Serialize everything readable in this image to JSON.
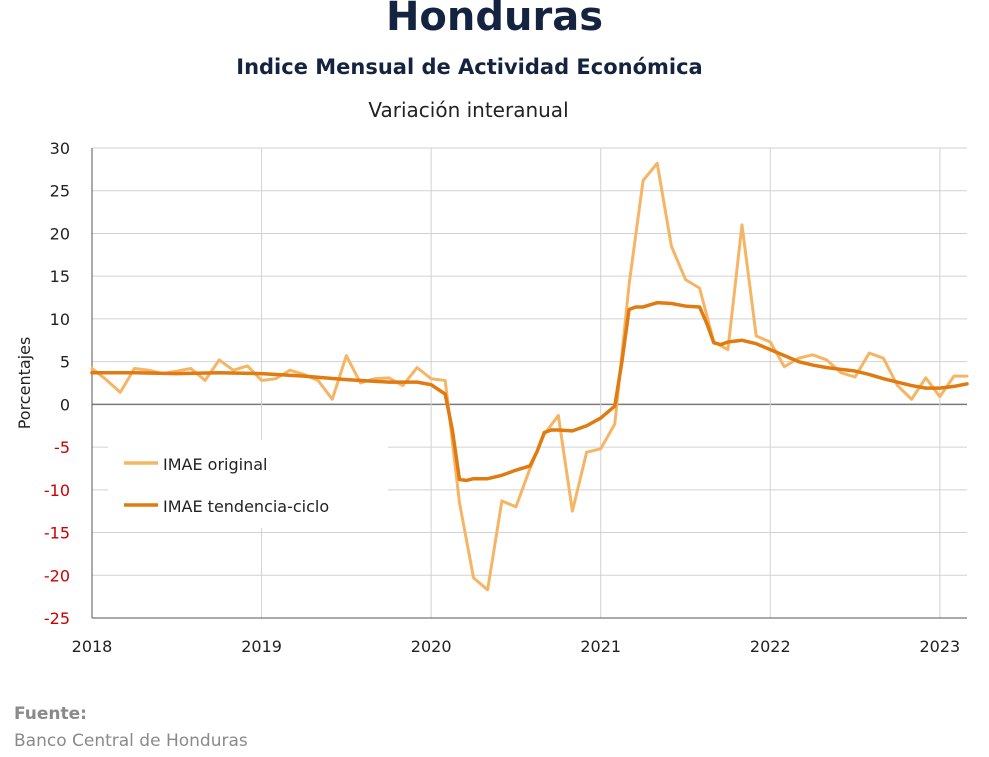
{
  "page": {
    "title": "Honduras",
    "subtitle": "Indice Mensual de  Actividad Económica",
    "source_label": "Fuente:",
    "source_text": "Banco Central de Honduras"
  },
  "colors": {
    "original": "#f6b565",
    "trend": "#e07b12",
    "negative_tick": "#cc0000",
    "axis": "#222222",
    "grid": "#d2d2d2",
    "zero_line": "#7a7a7a"
  },
  "chart_data": {
    "type": "line",
    "title": "Variación interanual",
    "ylabel": "Porcentajes",
    "xlabel": "",
    "ylim": [
      -25,
      30
    ],
    "xlim": [
      2018.0,
      2023.16
    ],
    "yticks": [
      "30",
      "25",
      "20",
      "15",
      "10",
      "5",
      "0",
      "-5",
      "-10",
      "-15",
      "-20",
      "-25"
    ],
    "xticks": [
      "2018",
      "2019",
      "2020",
      "2021",
      "2022",
      "2023"
    ],
    "grid": true,
    "legend_position": "lower-left",
    "series": [
      {
        "name": "IMAE original",
        "x": [
          2018.0,
          2018.083,
          2018.167,
          2018.25,
          2018.333,
          2018.417,
          2018.5,
          2018.583,
          2018.667,
          2018.75,
          2018.833,
          2018.917,
          2019.0,
          2019.083,
          2019.167,
          2019.25,
          2019.333,
          2019.417,
          2019.5,
          2019.583,
          2019.667,
          2019.75,
          2019.833,
          2019.917,
          2020.0,
          2020.083,
          2020.167,
          2020.25,
          2020.333,
          2020.417,
          2020.5,
          2020.583,
          2020.667,
          2020.75,
          2020.833,
          2020.917,
          2021.0,
          2021.083,
          2021.167,
          2021.25,
          2021.333,
          2021.417,
          2021.5,
          2021.583,
          2021.667,
          2021.75,
          2021.833,
          2021.917,
          2022.0,
          2022.083,
          2022.167,
          2022.25,
          2022.333,
          2022.417,
          2022.5,
          2022.583,
          2022.667,
          2022.75,
          2022.833,
          2022.917,
          2023.0,
          2023.083,
          2023.16
        ],
        "values": [
          4.2,
          2.9,
          1.4,
          4.2,
          4.0,
          3.6,
          3.9,
          4.2,
          2.8,
          5.2,
          4.0,
          4.5,
          2.8,
          3.0,
          4.0,
          3.5,
          2.8,
          0.6,
          5.7,
          2.5,
          3.0,
          3.1,
          2.2,
          4.3,
          3.0,
          2.8,
          -11.5,
          -20.3,
          -21.7,
          -11.3,
          -12.0,
          -7.5,
          -3.5,
          -1.3,
          -12.5,
          -5.6,
          -5.2,
          -2.3,
          14.0,
          26.2,
          28.2,
          18.5,
          14.6,
          13.6,
          7.3,
          6.4,
          21.0,
          8.0,
          7.3,
          4.4,
          5.4,
          5.8,
          5.2,
          3.7,
          3.2,
          6.0,
          5.4,
          2.2,
          0.6,
          3.1,
          0.9,
          3.3,
          3.3
        ]
      },
      {
        "name": "IMAE tendencia-ciclo",
        "x": [
          2018.0,
          2018.25,
          2018.5,
          2018.75,
          2019.0,
          2019.25,
          2019.5,
          2019.75,
          2019.917,
          2020.0,
          2020.083,
          2020.125,
          2020.167,
          2020.208,
          2020.25,
          2020.333,
          2020.417,
          2020.5,
          2020.583,
          2020.625,
          2020.667,
          2020.708,
          2020.75,
          2020.833,
          2020.917,
          2021.0,
          2021.083,
          2021.125,
          2021.167,
          2021.208,
          2021.25,
          2021.333,
          2021.417,
          2021.5,
          2021.583,
          2021.625,
          2021.667,
          2021.708,
          2021.75,
          2021.833,
          2021.917,
          2022.0,
          2022.083,
          2022.167,
          2022.25,
          2022.333,
          2022.417,
          2022.5,
          2022.583,
          2022.667,
          2022.75,
          2022.833,
          2022.917,
          2023.0,
          2023.083,
          2023.16
        ],
        "values": [
          3.7,
          3.7,
          3.6,
          3.7,
          3.6,
          3.3,
          2.9,
          2.6,
          2.6,
          2.3,
          1.2,
          -3.0,
          -8.8,
          -8.9,
          -8.7,
          -8.7,
          -8.3,
          -7.7,
          -7.2,
          -5.5,
          -3.3,
          -3.0,
          -3.0,
          -3.1,
          -2.5,
          -1.6,
          -0.2,
          5.0,
          11.1,
          11.4,
          11.4,
          11.9,
          11.8,
          11.5,
          11.4,
          9.5,
          7.2,
          7.0,
          7.3,
          7.5,
          7.1,
          6.4,
          5.7,
          5.0,
          4.6,
          4.3,
          4.1,
          3.9,
          3.5,
          3.0,
          2.6,
          2.2,
          1.9,
          1.9,
          2.1,
          2.4
        ]
      }
    ]
  }
}
